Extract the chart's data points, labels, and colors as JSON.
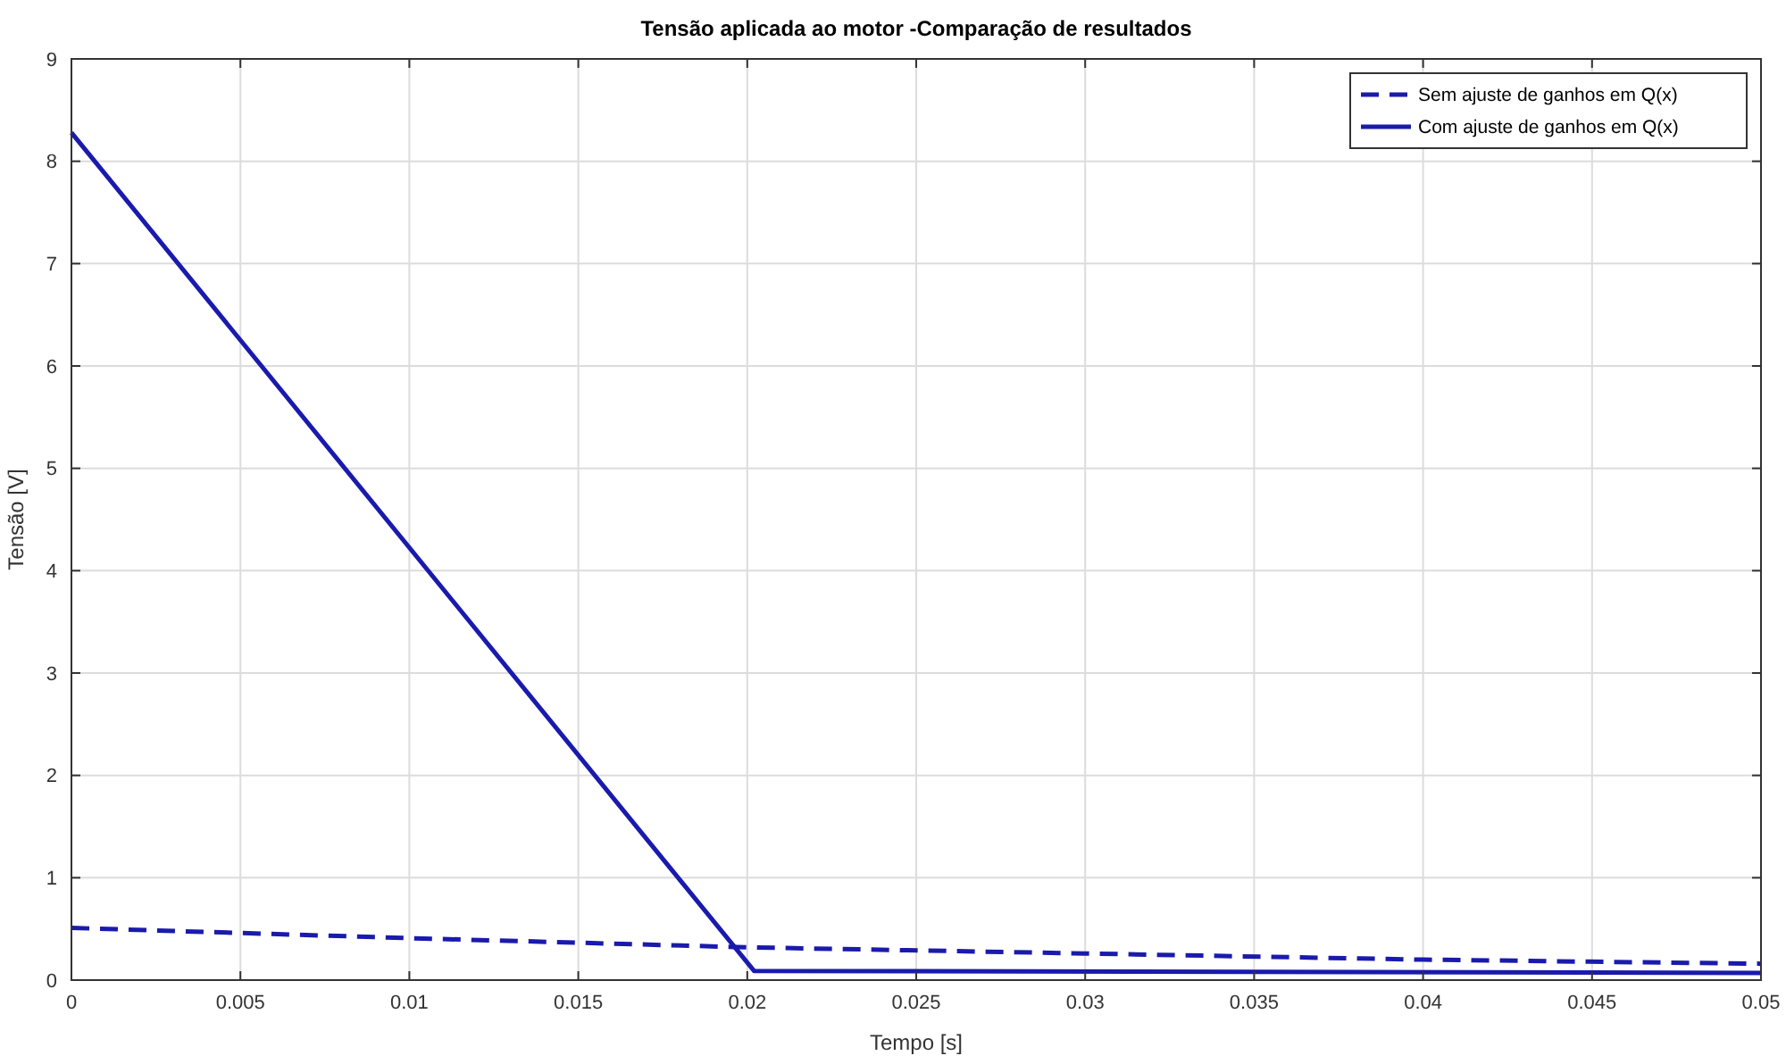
{
  "chart_data": {
    "type": "line",
    "title": "Tensão aplicada ao motor -Comparação de resultados",
    "xlabel": "Tempo [s]",
    "ylabel": "Tensão [V]",
    "series": [
      {
        "name": "Sem ajuste de ganhos em Q(x)",
        "color": "#1a1aad",
        "line_style": "dashed",
        "x": [
          0,
          0.01,
          0.02,
          0.03,
          0.04,
          0.05
        ],
        "values": [
          0.51,
          0.41,
          0.32,
          0.26,
          0.2,
          0.16
        ]
      },
      {
        "name": "Com ajuste de ganhos em Q(x)",
        "color": "#1a1aad",
        "line_style": "solid",
        "x": [
          0,
          0.0202,
          0.05
        ],
        "values": [
          8.28,
          0.09,
          0.07
        ]
      }
    ],
    "xlim": [
      0,
      0.05
    ],
    "xticks": [
      0,
      0.005,
      0.01,
      0.015,
      0.02,
      0.025,
      0.03,
      0.035,
      0.04,
      0.045,
      0.05
    ],
    "ylim": [
      0,
      9
    ],
    "yticks": [
      0,
      1,
      2,
      3,
      4,
      5,
      6,
      7,
      8,
      9
    ],
    "grid": true,
    "legend": "top right"
  }
}
